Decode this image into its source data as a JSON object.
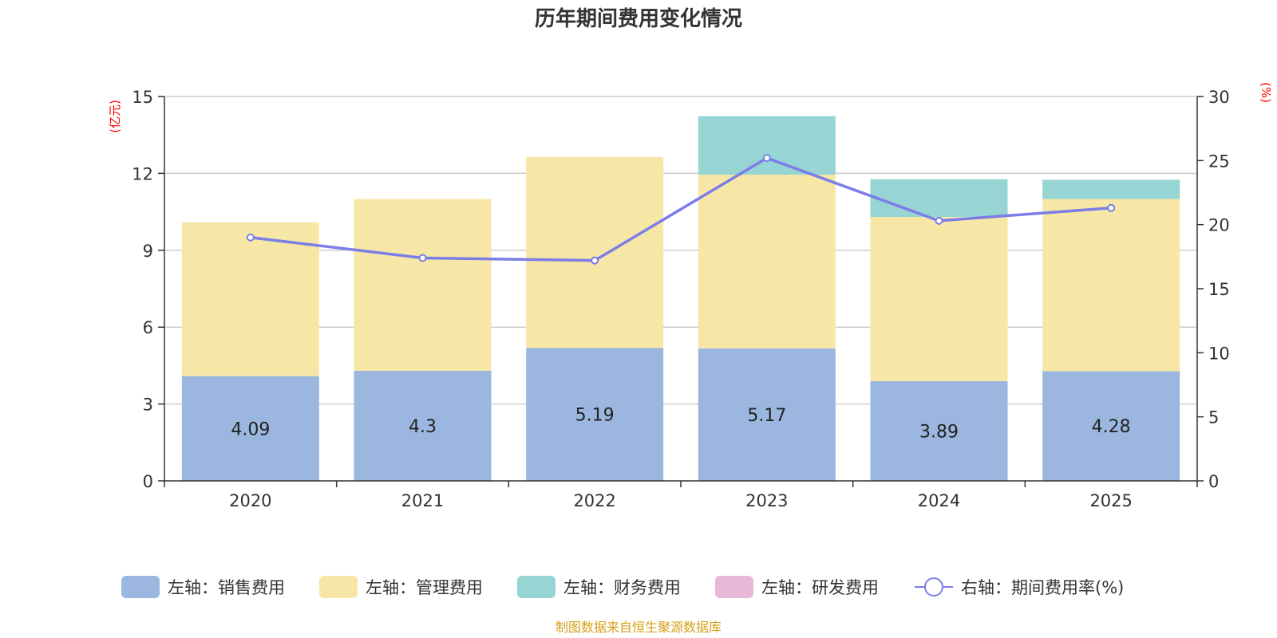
{
  "chart_data": {
    "type": "bar",
    "stacked": true,
    "title": "历年期间费用变化情况",
    "categories": [
      "2020",
      "2021",
      "2022",
      "2023",
      "2024",
      "2025"
    ],
    "series": [
      {
        "name": "左轴：销售费用",
        "axis": "left",
        "color": "#9bb7e0",
        "values": [
          4.09,
          4.3,
          5.19,
          5.17,
          3.89,
          4.28
        ],
        "show_labels": true
      },
      {
        "name": "左轴：管理费用",
        "axis": "left",
        "color": "#f7e7a6",
        "values": [
          6.0,
          6.7,
          7.45,
          6.78,
          6.41,
          6.72
        ]
      },
      {
        "name": "左轴：财务费用",
        "axis": "left",
        "color": "#97d4d4",
        "values": [
          0,
          0,
          0,
          2.28,
          1.47,
          0.75
        ]
      },
      {
        "name": "左轴：研发费用",
        "axis": "left",
        "color": "#e8b8d8",
        "values": [
          0,
          0,
          0,
          0,
          0,
          0
        ]
      }
    ],
    "line_series": {
      "name": "右轴：期间费用率(%)",
      "axis": "right",
      "color": "#7b7de8",
      "values": [
        19.0,
        17.4,
        17.2,
        25.2,
        20.3,
        21.3
      ]
    },
    "left_axis": {
      "unit": "(亿元)",
      "min": 0,
      "max": 15,
      "ticks": [
        "0",
        "3",
        "6",
        "9",
        "12",
        "15"
      ]
    },
    "right_axis": {
      "unit": "(%)",
      "min": 0,
      "max": 30,
      "ticks": [
        "0",
        "5",
        "10",
        "15",
        "20",
        "25",
        "30"
      ]
    },
    "grid": true,
    "legend_position": "bottom",
    "source": "制图数据来自恒生聚源数据库"
  }
}
